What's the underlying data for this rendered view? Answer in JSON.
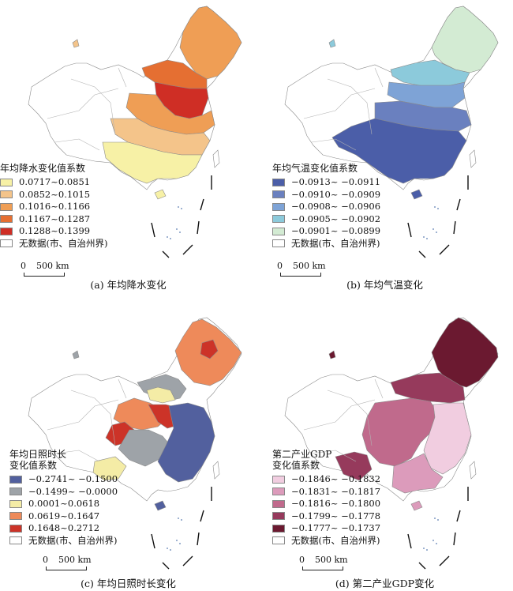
{
  "panels": [
    {
      "caption": "(a) 年均降水变化",
      "legend_title": [
        "年均降水变化值系数"
      ],
      "classes": [
        "0.0717~0.0851",
        "0.0852~0.1015",
        "0.1016~0.1166",
        "0.1167~0.1287",
        "0.1288~0.1399"
      ],
      "colors": [
        "#f7f1a6",
        "#f4c48a",
        "#ef9e55",
        "#e56f32",
        "#cf2e25"
      ],
      "nodata_label": "无数据(市、自治州界)",
      "scale_zero": "0",
      "scale_dist": "500 km"
    },
    {
      "caption": "(b) 年均气温变化",
      "legend_title": [
        "年均气温变化值系数"
      ],
      "classes": [
        "−0.0913~ −0.0911",
        "−0.0910~ −0.0909",
        "−0.0908~ −0.0906",
        "−0.0905~ −0.0902",
        "−0.0901~ −0.0899"
      ],
      "colors": [
        "#4b5ea8",
        "#6a80bf",
        "#7ea3d6",
        "#8ccadb",
        "#d3ebd3"
      ],
      "nodata_label": "无数据(市、自治州界)",
      "scale_zero": "0",
      "scale_dist": "500 km"
    },
    {
      "caption": "(c) 年均日照时长变化",
      "legend_title": [
        "年均日照时长",
        "变化值系数"
      ],
      "classes": [
        "−0.2741~ −0.1500",
        "−0.1499~ −0.0000",
        "0.0001~0.0618",
        "0.0619~0.1647",
        "0.1648~0.2712"
      ],
      "colors": [
        "#52609e",
        "#9ea3a8",
        "#f4eca6",
        "#ee8a5a",
        "#cc3328"
      ],
      "nodata_label": "无数据(市、自治州界)",
      "scale_zero": "0",
      "scale_dist": "500 km"
    },
    {
      "caption": "(d) 第二产业GDP变化",
      "legend_title": [
        "第二产业GDP",
        "变化值系数"
      ],
      "classes": [
        "−0.1846~ −0.1832",
        "−0.1831~ −0.1817",
        "−0.1816~ −0.1800",
        "−0.1799~ −0.1778",
        "−0.1777~ −0.1737"
      ],
      "colors": [
        "#f1cde0",
        "#dc9bbb",
        "#c06a8c",
        "#963a5c",
        "#6b1930"
      ],
      "nodata_label": "无数据(市、自治州界)",
      "scale_zero": "0",
      "scale_dist": "500 km"
    }
  ]
}
